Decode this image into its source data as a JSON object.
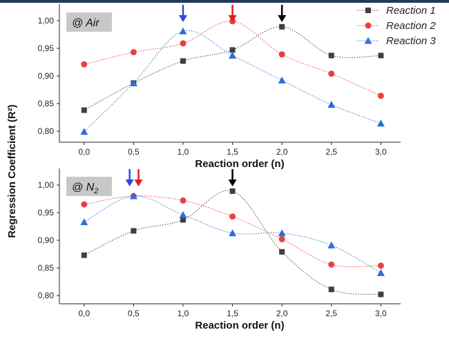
{
  "chart_data": {
    "type": "scatter",
    "ylabel": "Regression Coefficient (R²)",
    "legend": {
      "placement": "top-right",
      "entries": [
        {
          "name": "Reaction 1",
          "marker": "square",
          "color": "#404040"
        },
        {
          "name": "Reaction 2",
          "marker": "circle",
          "color": "#e8403e"
        },
        {
          "name": "Reaction 3",
          "marker": "triangle",
          "color": "#2e6fd6"
        }
      ]
    },
    "panels": [
      {
        "badge": "@ Air",
        "xlabel": "Reaction order (n)",
        "x": [
          0.0,
          0.5,
          1.0,
          1.5,
          2.0,
          2.5,
          3.0
        ],
        "x_tick_labels": [
          "0,0",
          "0,5",
          "1,0",
          "1,5",
          "2,0",
          "2,5",
          "3,0"
        ],
        "xlim": [
          -0.25,
          3.2
        ],
        "ylim": [
          0.78,
          1.03
        ],
        "y_ticks": [
          0.8,
          0.85,
          0.9,
          0.95,
          1.0
        ],
        "y_tick_labels": [
          "0,80",
          "0,85",
          "0,90",
          "0,95",
          "1,00"
        ],
        "series": [
          {
            "name": "Reaction 1",
            "values": [
              0.838,
              0.887,
              0.927,
              0.947,
              0.989,
              0.937,
              0.937
            ]
          },
          {
            "name": "Reaction 2",
            "values": [
              0.921,
              0.943,
              0.959,
              0.999,
              0.939,
              0.904,
              0.864
            ]
          },
          {
            "name": "Reaction 3",
            "values": [
              0.799,
              0.887,
              0.981,
              0.937,
              0.892,
              0.848,
              0.814
            ]
          }
        ],
        "arrows": [
          {
            "x": 1.0,
            "color": "#3344dd"
          },
          {
            "x": 1.5,
            "color": "#e0201e"
          },
          {
            "x": 2.0,
            "color": "#000000"
          }
        ]
      },
      {
        "badge": "@ N",
        "badge_subscript": "2",
        "xlabel": "Reaction order (n)",
        "x": [
          0.0,
          0.5,
          1.0,
          1.5,
          2.0,
          2.5,
          3.0
        ],
        "x_tick_labels": [
          "0,0",
          "0,5",
          "1,0",
          "1,5",
          "2,0",
          "2,5",
          "3,0"
        ],
        "xlim": [
          -0.25,
          3.2
        ],
        "ylim": [
          0.785,
          1.03
        ],
        "y_ticks": [
          0.8,
          0.85,
          0.9,
          0.95,
          1.0
        ],
        "y_tick_labels": [
          "0,80",
          "0,85",
          "0,90",
          "0,95",
          "1,00"
        ],
        "series": [
          {
            "name": "Reaction 1",
            "values": [
              0.873,
              0.917,
              0.937,
              0.989,
              0.879,
              0.811,
              0.802
            ]
          },
          {
            "name": "Reaction 2",
            "values": [
              0.965,
              0.98,
              0.972,
              0.943,
              0.902,
              0.856,
              0.854
            ]
          },
          {
            "name": "Reaction 3",
            "values": [
              0.933,
              0.98,
              0.946,
              0.913,
              0.913,
              0.891,
              0.841
            ]
          }
        ],
        "arrows": [
          {
            "x": 0.46,
            "color": "#3344dd"
          },
          {
            "x": 0.55,
            "color": "#e0201e"
          },
          {
            "x": 1.5,
            "color": "#000000"
          }
        ]
      }
    ]
  }
}
